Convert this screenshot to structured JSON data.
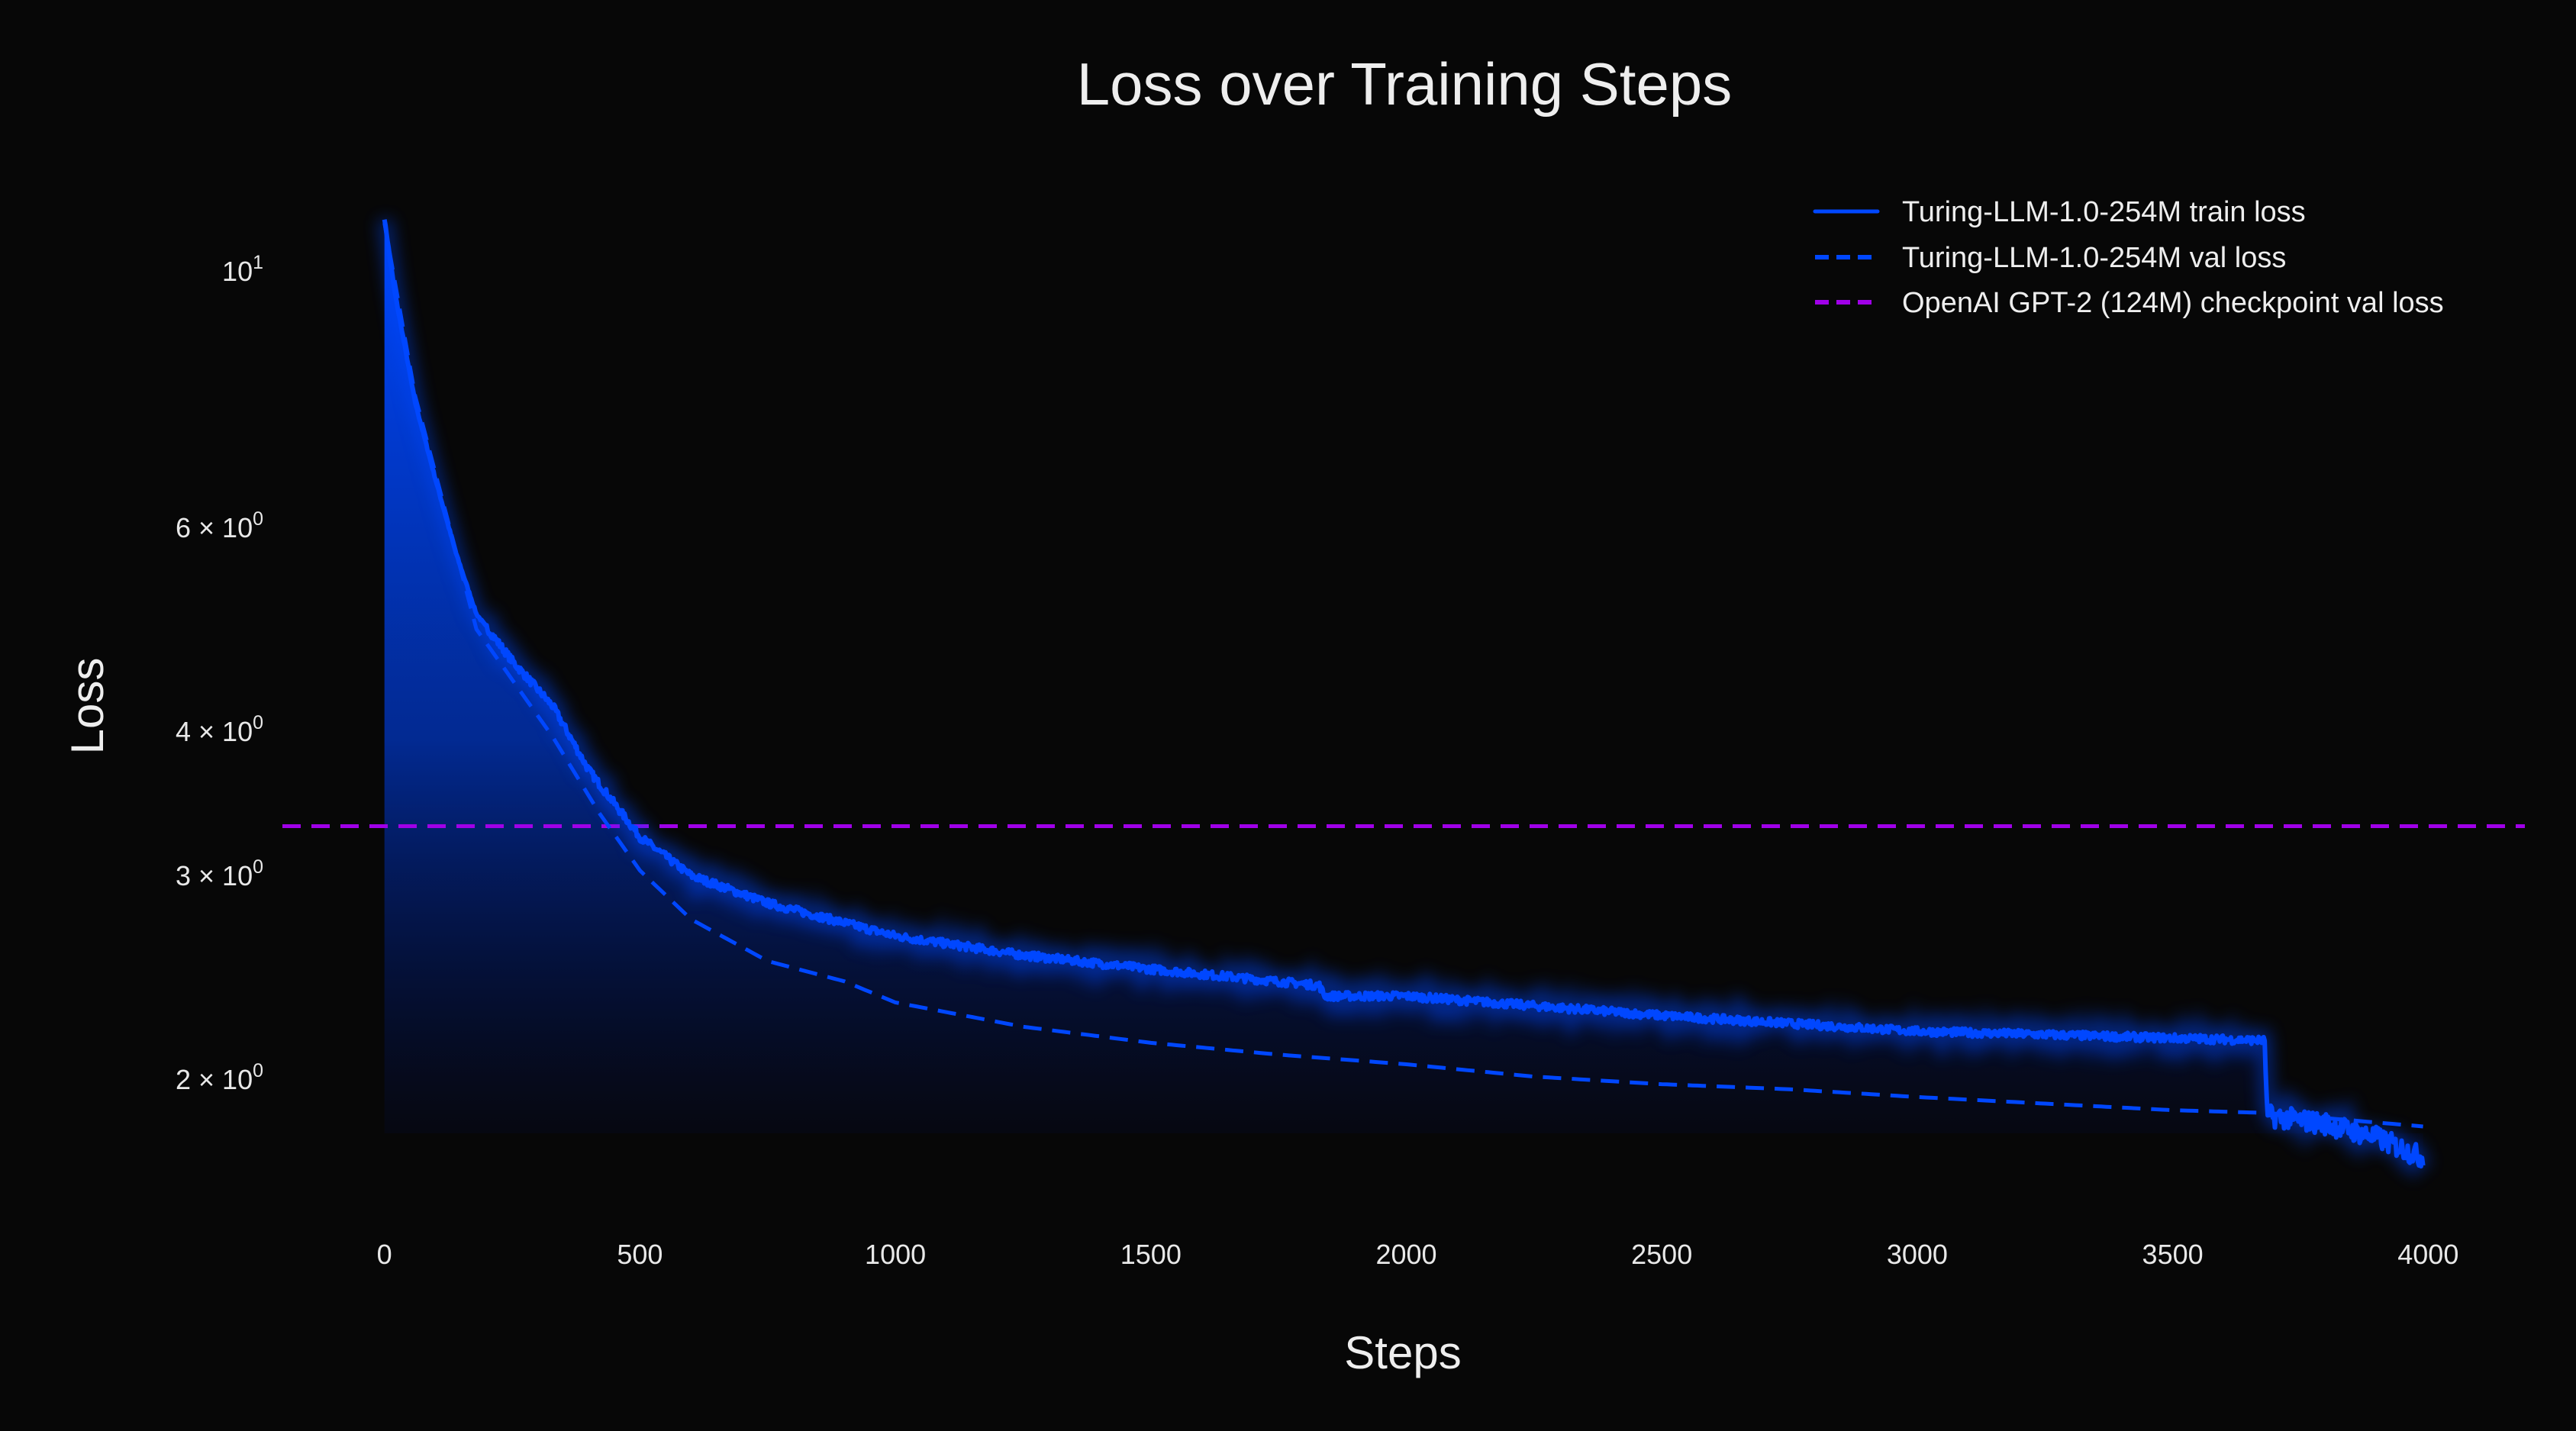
{
  "chart_data": {
    "type": "line",
    "title": "Loss over Training Steps",
    "xlabel": "Steps",
    "ylabel": "Loss",
    "yscale": "log",
    "xlim": [
      -200,
      4200
    ],
    "ylim": [
      1.6,
      12
    ],
    "grid": false,
    "legend_position": "top-right",
    "x_ticks": [
      {
        "value": 0,
        "label": "0"
      },
      {
        "value": 500,
        "label": "500"
      },
      {
        "value": 1000,
        "label": "1000"
      },
      {
        "value": 1500,
        "label": "1500"
      },
      {
        "value": 2000,
        "label": "2000"
      },
      {
        "value": 2500,
        "label": "2500"
      },
      {
        "value": 3000,
        "label": "3000"
      },
      {
        "value": 3500,
        "label": "3500"
      },
      {
        "value": 4000,
        "label": "4000"
      }
    ],
    "y_ticks": [
      {
        "value": 10,
        "base": "10",
        "exp": "1"
      },
      {
        "value": 6,
        "base": "6 × 10",
        "exp": "0"
      },
      {
        "value": 4,
        "base": "4 × 10",
        "exp": "0"
      },
      {
        "value": 3,
        "base": "3 × 10",
        "exp": "0"
      },
      {
        "value": 2,
        "base": "2 × 10",
        "exp": "0"
      }
    ],
    "series": [
      {
        "name": "Turing-LLM-1.0-254M train loss",
        "style": "solid",
        "color": "#0047ff",
        "x": [
          0,
          20,
          60,
          100,
          140,
          180,
          250,
          330,
          400,
          500,
          600,
          750,
          1000,
          1250,
          1500,
          1830,
          1840,
          2000,
          2500,
          3000,
          3680,
          3685,
          3800,
          3900,
          3990
        ],
        "y": [
          11.1,
          9.6,
          7.7,
          6.6,
          5.7,
          5.05,
          4.6,
          4.2,
          3.7,
          3.24,
          3.0,
          2.84,
          2.66,
          2.56,
          2.49,
          2.41,
          2.36,
          2.36,
          2.27,
          2.2,
          2.16,
          1.86,
          1.83,
          1.78,
          1.71
        ]
      },
      {
        "name": "Turing-LLM-1.0-254M val loss",
        "style": "dashed",
        "color": "#0047ff",
        "x": [
          0,
          60,
          180,
          330,
          420,
          500,
          600,
          750,
          900,
          1000,
          1250,
          1500,
          1750,
          2000,
          2250,
          2500,
          2750,
          3000,
          3500,
          3680,
          3990
        ],
        "y": [
          11.0,
          7.8,
          4.9,
          3.95,
          3.4,
          3.03,
          2.75,
          2.53,
          2.43,
          2.33,
          2.22,
          2.15,
          2.1,
          2.06,
          2.01,
          1.98,
          1.96,
          1.93,
          1.88,
          1.87,
          1.82
        ]
      },
      {
        "name": "OpenAI GPT-2 (124M) checkpoint val loss",
        "style": "dashed",
        "color": "#a000e8",
        "type": "hline",
        "y_value": 3.31
      }
    ]
  }
}
